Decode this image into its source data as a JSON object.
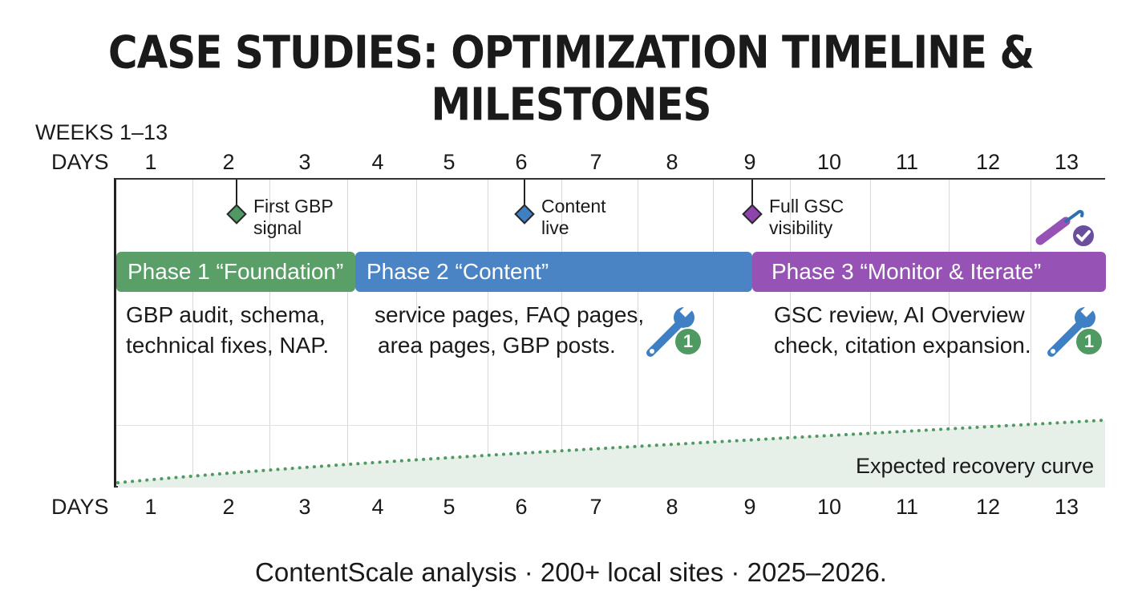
{
  "title": "CASE STUDIES: OPTIMIZATION TIMELINE & MILESTONES",
  "weeks_label": "WEEKS 1–13",
  "axis_label": "DAYS",
  "ticks": [
    "1",
    "2",
    "3",
    "4",
    "5",
    "6",
    "7",
    "8",
    "9",
    "10",
    "11",
    "12",
    "13"
  ],
  "milestones": [
    {
      "lines": [
        "First GBP",
        "signal"
      ],
      "color": "#4f9a62"
    },
    {
      "lines": [
        "Content",
        "live"
      ],
      "color": "#3f7fc4"
    },
    {
      "lines": [
        "Full GSC",
        "visibility"
      ],
      "color": "#8e44ad"
    }
  ],
  "phases": [
    {
      "label": "Phase 1 “Foundation”",
      "color": "#5a9e68",
      "desc": [
        "GBP audit, schema,",
        "technical fixes, NAP."
      ]
    },
    {
      "label": "Phase 2 “Content”",
      "color": "#4a84c4",
      "desc": [
        "service pages, FAQ pages,",
        "area pages, GBP posts."
      ]
    },
    {
      "label": "Phase 3 “Monitor & Iterate”",
      "color": "#9653b5",
      "desc": [
        "GSC review, AI Overview",
        "check, citation expansion."
      ]
    }
  ],
  "badge_number": "1",
  "curve_label": "Expected recovery curve",
  "curve_color": "#5a9e68",
  "footnote": "ContentScale analysis · 200+ local sites · 2025–2026.",
  "icons": [
    "wrench-icon",
    "check-icon"
  ]
}
